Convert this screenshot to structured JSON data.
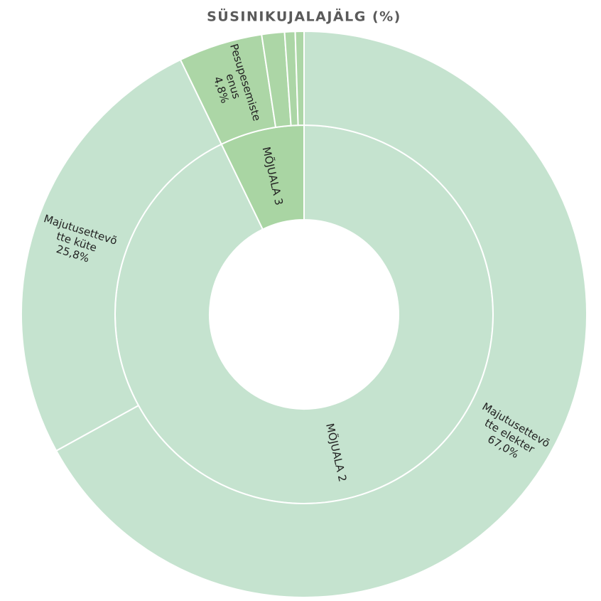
{
  "chart_data": {
    "type": "sunburst",
    "title": "SÜSINIKUJALAJÄLG (%)",
    "rings": [
      {
        "categories": [
          "MÕJUALA 2",
          "MÕJUALA 3"
        ],
        "values": [
          92.8,
          7.2
        ],
        "colors": [
          "#c5e3cf",
          "#a9d5a3"
        ]
      },
      {
        "categories": [
          "Majutusettevõtte elekter",
          "Majutusettevõtte küte",
          "Pesupesemisteenus",
          null,
          null,
          null
        ],
        "values": [
          67.0,
          25.8,
          4.8,
          1.3,
          0.6,
          0.5
        ],
        "value_labels": [
          "67,0%",
          "25,8%",
          "4,8%",
          null,
          null,
          null
        ],
        "colors": [
          "#c5e3cf",
          "#c5e3cf",
          "#acd6a6",
          "#acd6a6",
          "#acd6a6",
          "#acd6a6"
        ]
      }
    ]
  }
}
